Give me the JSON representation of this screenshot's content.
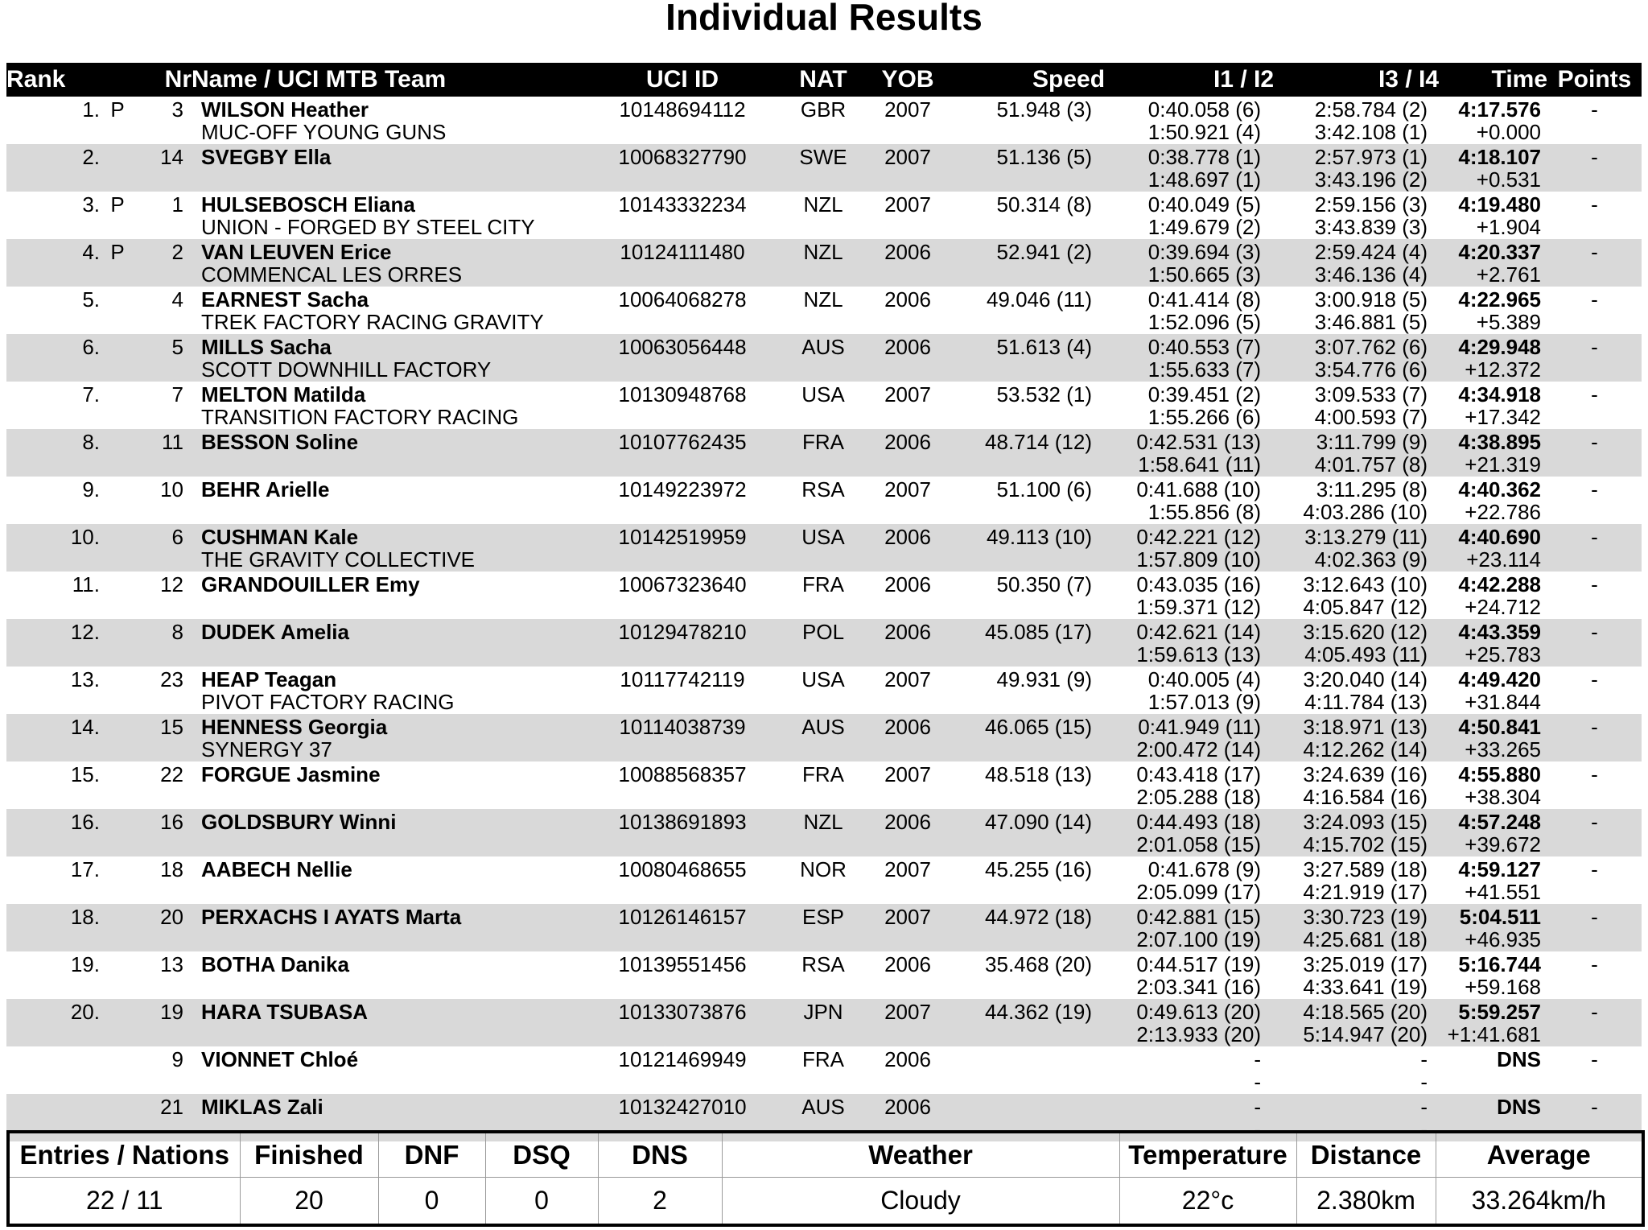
{
  "title": "Individual Results",
  "colors": {
    "header_bg": "#000000",
    "header_text": "#ffffff",
    "row_alt_bg": "#d9d9d9"
  },
  "results_table": {
    "headers": {
      "rank": "Rank",
      "nr": "Nr",
      "name": "Name / UCI MTB Team",
      "uci_id": "UCI ID",
      "nat": "NAT",
      "yob": "YOB",
      "speed": "Speed",
      "i1_i2": "I1 / I2",
      "i3_i4": "I3 / I4",
      "time": "Time",
      "points": "Points"
    },
    "rows": [
      {
        "rank": "1.",
        "protected": "P",
        "nr": "3",
        "name": "WILSON Heather",
        "team": "MUC-OFF YOUNG GUNS",
        "uci_id": "10148694112",
        "nat": "GBR",
        "yob": "2007",
        "speed": "51.948 (3)",
        "i1": "0:40.058 (6)",
        "i2": "1:50.921 (4)",
        "i3": "2:58.784 (2)",
        "i4": "3:42.108 (1)",
        "time": "4:17.576",
        "gap": "+0.000",
        "points": "-"
      },
      {
        "rank": "2.",
        "protected": "",
        "nr": "14",
        "name": "SVEGBY Ella",
        "team": "",
        "uci_id": "10068327790",
        "nat": "SWE",
        "yob": "2007",
        "speed": "51.136 (5)",
        "i1": "0:38.778 (1)",
        "i2": "1:48.697 (1)",
        "i3": "2:57.973 (1)",
        "i4": "3:43.196 (2)",
        "time": "4:18.107",
        "gap": "+0.531",
        "points": "-"
      },
      {
        "rank": "3.",
        "protected": "P",
        "nr": "1",
        "name": "HULSEBOSCH Eliana",
        "team": "UNION - FORGED BY STEEL CITY",
        "uci_id": "10143332234",
        "nat": "NZL",
        "yob": "2007",
        "speed": "50.314 (8)",
        "i1": "0:40.049 (5)",
        "i2": "1:49.679 (2)",
        "i3": "2:59.156 (3)",
        "i4": "3:43.839 (3)",
        "time": "4:19.480",
        "gap": "+1.904",
        "points": "-"
      },
      {
        "rank": "4.",
        "protected": "P",
        "nr": "2",
        "name": "VAN LEUVEN Erice",
        "team": "COMMENCAL LES ORRES",
        "uci_id": "10124111480",
        "nat": "NZL",
        "yob": "2006",
        "speed": "52.941 (2)",
        "i1": "0:39.694 (3)",
        "i2": "1:50.665 (3)",
        "i3": "2:59.424 (4)",
        "i4": "3:46.136 (4)",
        "time": "4:20.337",
        "gap": "+2.761",
        "points": "-"
      },
      {
        "rank": "5.",
        "protected": "",
        "nr": "4",
        "name": "EARNEST Sacha",
        "team": "TREK FACTORY RACING GRAVITY",
        "uci_id": "10064068278",
        "nat": "NZL",
        "yob": "2006",
        "speed": "49.046 (11)",
        "i1": "0:41.414 (8)",
        "i2": "1:52.096 (5)",
        "i3": "3:00.918 (5)",
        "i4": "3:46.881 (5)",
        "time": "4:22.965",
        "gap": "+5.389",
        "points": "-"
      },
      {
        "rank": "6.",
        "protected": "",
        "nr": "5",
        "name": "MILLS Sacha",
        "team": "SCOTT DOWNHILL FACTORY",
        "uci_id": "10063056448",
        "nat": "AUS",
        "yob": "2006",
        "speed": "51.613 (4)",
        "i1": "0:40.553 (7)",
        "i2": "1:55.633 (7)",
        "i3": "3:07.762 (6)",
        "i4": "3:54.776 (6)",
        "time": "4:29.948",
        "gap": "+12.372",
        "points": "-"
      },
      {
        "rank": "7.",
        "protected": "",
        "nr": "7",
        "name": "MELTON Matilda",
        "team": "TRANSITION FACTORY RACING",
        "uci_id": "10130948768",
        "nat": "USA",
        "yob": "2007",
        "speed": "53.532 (1)",
        "i1": "0:39.451 (2)",
        "i2": "1:55.266 (6)",
        "i3": "3:09.533 (7)",
        "i4": "4:00.593 (7)",
        "time": "4:34.918",
        "gap": "+17.342",
        "points": "-"
      },
      {
        "rank": "8.",
        "protected": "",
        "nr": "11",
        "name": "BESSON Soline",
        "team": "",
        "uci_id": "10107762435",
        "nat": "FRA",
        "yob": "2006",
        "speed": "48.714 (12)",
        "i1": "0:42.531 (13)",
        "i2": "1:58.641 (11)",
        "i3": "3:11.799 (9)",
        "i4": "4:01.757 (8)",
        "time": "4:38.895",
        "gap": "+21.319",
        "points": "-"
      },
      {
        "rank": "9.",
        "protected": "",
        "nr": "10",
        "name": "BEHR Arielle",
        "team": "",
        "uci_id": "10149223972",
        "nat": "RSA",
        "yob": "2007",
        "speed": "51.100 (6)",
        "i1": "0:41.688 (10)",
        "i2": "1:55.856 (8)",
        "i3": "3:11.295 (8)",
        "i4": "4:03.286 (10)",
        "time": "4:40.362",
        "gap": "+22.786",
        "points": "-"
      },
      {
        "rank": "10.",
        "protected": "",
        "nr": "6",
        "name": "CUSHMAN Kale",
        "team": "THE GRAVITY COLLECTIVE",
        "uci_id": "10142519959",
        "nat": "USA",
        "yob": "2006",
        "speed": "49.113 (10)",
        "i1": "0:42.221 (12)",
        "i2": "1:57.809 (10)",
        "i3": "3:13.279 (11)",
        "i4": "4:02.363 (9)",
        "time": "4:40.690",
        "gap": "+23.114",
        "points": "-"
      },
      {
        "rank": "11.",
        "protected": "",
        "nr": "12",
        "name": "GRANDOUILLER Emy",
        "team": "",
        "uci_id": "10067323640",
        "nat": "FRA",
        "yob": "2006",
        "speed": "50.350 (7)",
        "i1": "0:43.035 (16)",
        "i2": "1:59.371 (12)",
        "i3": "3:12.643 (10)",
        "i4": "4:05.847 (12)",
        "time": "4:42.288",
        "gap": "+24.712",
        "points": "-"
      },
      {
        "rank": "12.",
        "protected": "",
        "nr": "8",
        "name": "DUDEK Amelia",
        "team": "",
        "uci_id": "10129478210",
        "nat": "POL",
        "yob": "2006",
        "speed": "45.085 (17)",
        "i1": "0:42.621 (14)",
        "i2": "1:59.613 (13)",
        "i3": "3:15.620 (12)",
        "i4": "4:05.493 (11)",
        "time": "4:43.359",
        "gap": "+25.783",
        "points": "-"
      },
      {
        "rank": "13.",
        "protected": "",
        "nr": "23",
        "name": "HEAP Teagan",
        "team": "PIVOT FACTORY RACING",
        "uci_id": "10117742119",
        "nat": "USA",
        "yob": "2007",
        "speed": "49.931 (9)",
        "i1": "0:40.005 (4)",
        "i2": "1:57.013 (9)",
        "i3": "3:20.040 (14)",
        "i4": "4:11.784 (13)",
        "time": "4:49.420",
        "gap": "+31.844",
        "points": "-"
      },
      {
        "rank": "14.",
        "protected": "",
        "nr": "15",
        "name": "HENNESS Georgia",
        "team": "SYNERGY 37",
        "uci_id": "10114038739",
        "nat": "AUS",
        "yob": "2006",
        "speed": "46.065 (15)",
        "i1": "0:41.949 (11)",
        "i2": "2:00.472 (14)",
        "i3": "3:18.971 (13)",
        "i4": "4:12.262 (14)",
        "time": "4:50.841",
        "gap": "+33.265",
        "points": "-"
      },
      {
        "rank": "15.",
        "protected": "",
        "nr": "22",
        "name": "FORGUE Jasmine",
        "team": "",
        "uci_id": "10088568357",
        "nat": "FRA",
        "yob": "2007",
        "speed": "48.518 (13)",
        "i1": "0:43.418 (17)",
        "i2": "2:05.288 (18)",
        "i3": "3:24.639 (16)",
        "i4": "4:16.584 (16)",
        "time": "4:55.880",
        "gap": "+38.304",
        "points": "-"
      },
      {
        "rank": "16.",
        "protected": "",
        "nr": "16",
        "name": "GOLDSBURY Winni",
        "team": "",
        "uci_id": "10138691893",
        "nat": "NZL",
        "yob": "2006",
        "speed": "47.090 (14)",
        "i1": "0:44.493 (18)",
        "i2": "2:01.058 (15)",
        "i3": "3:24.093 (15)",
        "i4": "4:15.702 (15)",
        "time": "4:57.248",
        "gap": "+39.672",
        "points": "-"
      },
      {
        "rank": "17.",
        "protected": "",
        "nr": "18",
        "name": "AABECH Nellie",
        "team": "",
        "uci_id": "10080468655",
        "nat": "NOR",
        "yob": "2007",
        "speed": "45.255 (16)",
        "i1": "0:41.678 (9)",
        "i2": "2:05.099 (17)",
        "i3": "3:27.589 (18)",
        "i4": "4:21.919 (17)",
        "time": "4:59.127",
        "gap": "+41.551",
        "points": "-"
      },
      {
        "rank": "18.",
        "protected": "",
        "nr": "20",
        "name": "PERXACHS I AYATS Marta",
        "team": "",
        "uci_id": "10126146157",
        "nat": "ESP",
        "yob": "2007",
        "speed": "44.972 (18)",
        "i1": "0:42.881 (15)",
        "i2": "2:07.100 (19)",
        "i3": "3:30.723 (19)",
        "i4": "4:25.681 (18)",
        "time": "5:04.511",
        "gap": "+46.935",
        "points": "-"
      },
      {
        "rank": "19.",
        "protected": "",
        "nr": "13",
        "name": "BOTHA Danika",
        "team": "",
        "uci_id": "10139551456",
        "nat": "RSA",
        "yob": "2006",
        "speed": "35.468 (20)",
        "i1": "0:44.517 (19)",
        "i2": "2:03.341 (16)",
        "i3": "3:25.019 (17)",
        "i4": "4:33.641 (19)",
        "time": "5:16.744",
        "gap": "+59.168",
        "points": "-"
      },
      {
        "rank": "20.",
        "protected": "",
        "nr": "19",
        "name": "HARA TSUBASA",
        "team": "",
        "uci_id": "10133073876",
        "nat": "JPN",
        "yob": "2007",
        "speed": "44.362 (19)",
        "i1": "0:49.613 (20)",
        "i2": "2:13.933 (20)",
        "i3": "4:18.565 (20)",
        "i4": "5:14.947 (20)",
        "time": "5:59.257",
        "gap": "+1:41.681",
        "points": "-"
      },
      {
        "rank": "",
        "protected": "",
        "nr": "9",
        "name": "VIONNET Chloé",
        "team": "",
        "uci_id": "10121469949",
        "nat": "FRA",
        "yob": "2006",
        "speed": "",
        "i1": "-",
        "i2": "-",
        "i3": "-",
        "i4": "-",
        "time": "DNS",
        "gap": "",
        "points": "-"
      },
      {
        "rank": "",
        "protected": "",
        "nr": "21",
        "name": "MIKLAS Zali",
        "team": "",
        "uci_id": "10132427010",
        "nat": "AUS",
        "yob": "2006",
        "speed": "",
        "i1": "-",
        "i2": "-",
        "i3": "-",
        "i4": "-",
        "time": "DNS",
        "gap": "",
        "points": "-"
      }
    ]
  },
  "summary_table": {
    "headers": [
      "Entries / Nations",
      "Finished",
      "DNF",
      "DSQ",
      "DNS",
      "Weather",
      "Temperature",
      "Distance",
      "Average"
    ],
    "values": [
      "22 / 11",
      "20",
      "0",
      "0",
      "2",
      "Cloudy",
      "22°c",
      "2.380km",
      "33.264km/h"
    ]
  }
}
